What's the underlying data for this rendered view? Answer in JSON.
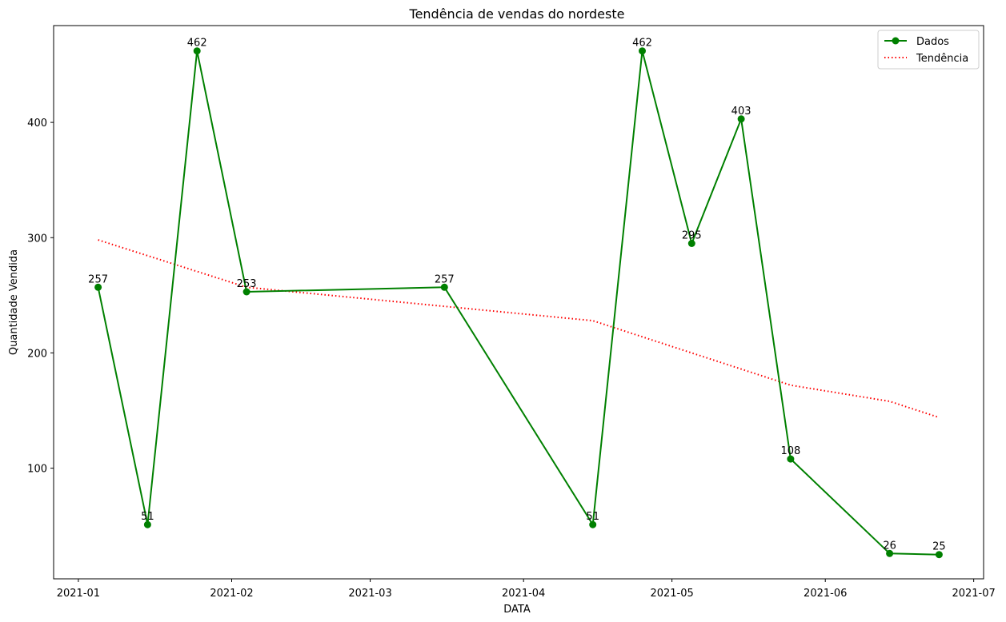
{
  "chart_data": {
    "type": "line",
    "title": "Tendência de vendas do nordeste",
    "xlabel": "DATA",
    "ylabel": "Quantidade Vendida",
    "x_ticks": [
      "2021-01",
      "2021-02",
      "2021-03",
      "2021-04",
      "2021-05",
      "2021-06",
      "2021-07"
    ],
    "y_ticks": [
      100,
      200,
      300,
      400
    ],
    "xlim": [
      "2020-12-27",
      "2021-07-03"
    ],
    "ylim": [
      4,
      484
    ],
    "grid": false,
    "legend": "top-right",
    "series": [
      {
        "name": "Dados",
        "style": "solid-marker",
        "color": "#008000",
        "x": [
          "2021-01-05",
          "2021-01-15",
          "2021-01-25",
          "2021-02-04",
          "2021-03-16",
          "2021-04-15",
          "2021-04-25",
          "2021-05-05",
          "2021-05-15",
          "2021-05-25",
          "2021-06-14",
          "2021-06-24"
        ],
        "y": [
          257,
          51,
          462,
          253,
          257,
          51,
          462,
          295,
          403,
          108,
          26,
          25
        ],
        "data_labels": [
          "257",
          "51",
          "462",
          "253",
          "257",
          "51",
          "462",
          "295",
          "403",
          "108",
          "26",
          "25"
        ]
      },
      {
        "name": "Tendência",
        "style": "dotted",
        "color": "#ff0000",
        "x": [
          "2021-01-05",
          "2021-02-04",
          "2021-04-15",
          "2021-05-25",
          "2021-06-14",
          "2021-06-24"
        ],
        "y": [
          298,
          257,
          228,
          172,
          158,
          144
        ]
      }
    ]
  }
}
